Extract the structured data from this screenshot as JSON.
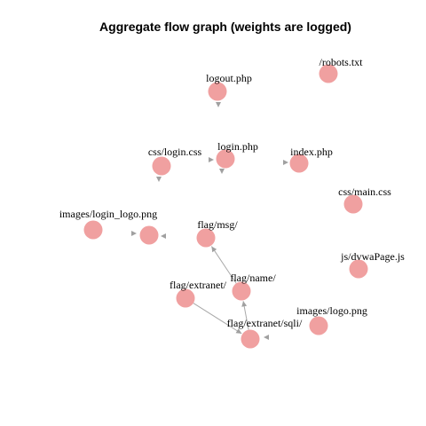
{
  "title": "Aggregate flow graph (weights are logged)",
  "colors": {
    "node": "#f0a0a0",
    "edge": "#a8a8a8",
    "arrow": "#a0a0a0"
  },
  "nodes": [
    {
      "id": "robots",
      "label": "/robots.txt"
    },
    {
      "id": "logout",
      "label": "logout.php"
    },
    {
      "id": "login_css",
      "label": "css/login.css"
    },
    {
      "id": "login_php",
      "label": "login.php"
    },
    {
      "id": "index",
      "label": "index.php"
    },
    {
      "id": "main_css",
      "label": "css/main.css"
    },
    {
      "id": "login_logo",
      "label": "images/login_logo.png"
    },
    {
      "id": "unlabeled",
      "label": ""
    },
    {
      "id": "flag_msg",
      "label": "flag/msg/"
    },
    {
      "id": "dvwa_js",
      "label": "js/dvwaPage.js"
    },
    {
      "id": "flag_name",
      "label": "flag/name/"
    },
    {
      "id": "flag_extranet",
      "label": "flag/extranet/"
    },
    {
      "id": "images_logo",
      "label": "images/logo.png"
    },
    {
      "id": "flag_sqli",
      "label": "flag/extranet/sqli/"
    }
  ],
  "edges": [
    {
      "from": "flag_name",
      "to": "flag_msg"
    },
    {
      "from": "flag_sqli",
      "to": "flag_name"
    },
    {
      "from": "flag_extranet",
      "to": "flag_sqli"
    }
  ]
}
